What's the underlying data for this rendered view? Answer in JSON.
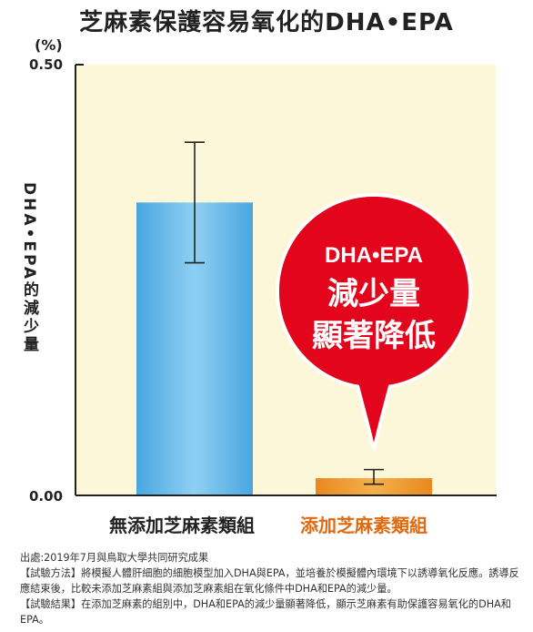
{
  "chart_data": {
    "type": "bar",
    "title": "芝麻素保護容易氧化的DHA•EPA",
    "unit": "(%)",
    "ylabel": "DHA•EPA的減少量",
    "ylim": [
      0,
      0.5
    ],
    "yticks": [
      "0.00",
      "0.50"
    ],
    "categories": [
      "無添加芝麻素類組",
      "添加芝麻素類組"
    ],
    "values": [
      0.34,
      0.02
    ],
    "errors": [
      {
        "low": 0.27,
        "high": 0.41
      },
      {
        "low": 0.013,
        "high": 0.03
      }
    ],
    "colors": [
      "#5bb1e6",
      "#e8912b"
    ],
    "annotation": {
      "line1": "DHA•EPA",
      "line2": "減少量",
      "line3": "顯著降低",
      "color": "#e3051b"
    }
  },
  "footer": {
    "source": "出處:2019年7月與鳥取大學共同研究成果",
    "method": "【試驗方法】將模擬人體肝細胞的細胞模型加入DHA與EPA，並培養於模擬體內環境下以誘導氧化反應。誘導反應結束後，比較未添加芝麻素組與添加芝麻素組在氧化條件中DHA和EPA的減少量。",
    "result": "【試驗結果】在添加芝麻素的組別中，DHA和EPA的減少量顯著降低，顯示芝麻素有助保護容易氧化的DHA和EPA。"
  }
}
